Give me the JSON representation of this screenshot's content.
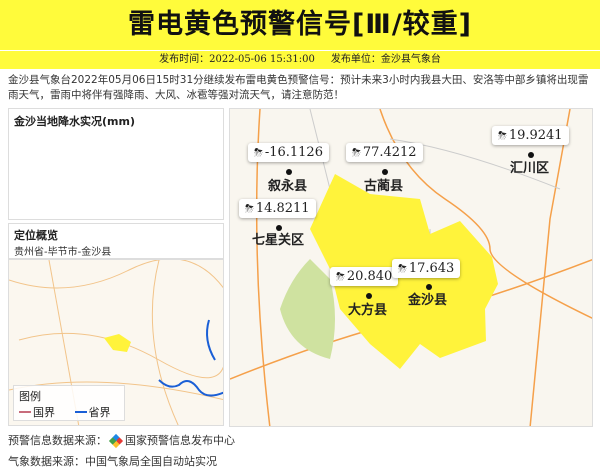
{
  "header": {
    "title": "雷电黄色预警信号[Ⅲ/较重]",
    "publish_time": "发布时间：2022-05-06 15:31:00",
    "publisher": "发布单位：金沙县气象台"
  },
  "description": "金沙县气象台2022年05月06日15时31分继续发布雷电黄色预警信号：预计未来3小时内我县大田、安洛等中部乡镇将出现雷雨天气，雷雨中将伴有强降雨、大风、冰雹等强对流天气，请注意防范！",
  "rain_panel": {
    "title": "金沙当地降水实况(mm)"
  },
  "locator": {
    "title": "定位概览",
    "path": "贵州省-毕节市-金沙县",
    "legend_title": "图例",
    "legend": [
      {
        "label": "国界",
        "color": "#c86b7a"
      },
      {
        "label": "省界",
        "color": "#1a5fd6"
      }
    ]
  },
  "map": {
    "warning_color": "#fff33b",
    "stations": [
      {
        "name": "叙永县",
        "value": "-16.1126"
      },
      {
        "name": "古蔺县",
        "value": "77.4212"
      },
      {
        "name": "汇川区",
        "value": "19.9241"
      },
      {
        "name": "七星关区",
        "value": "14.8211"
      },
      {
        "name": "大方县",
        "value": "20.840"
      },
      {
        "name": "金沙县",
        "value": "17.643"
      }
    ]
  },
  "footer": {
    "warning_source_label": "预警信息数据来源：",
    "warning_source": "国家预警信息发布中心",
    "weather_source": "气象数据来源：中国气象局全国自动站实况"
  }
}
